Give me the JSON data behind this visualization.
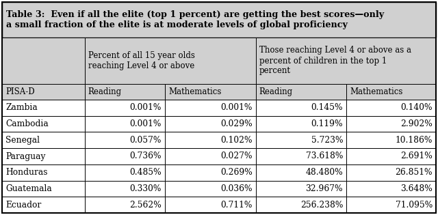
{
  "title_line1": "Table 3:  Even if all the elite (top 1 percent) are getting the best scores—only",
  "title_line2": "a small fraction of the elite is at moderate levels of global proficiency",
  "col_header_1": "Percent of all 15 year olds\nreaching Level 4 or above",
  "col_header_2": "Those reaching Level 4 or above as a\npercent of children in the top 1\npercent",
  "sub_headers": [
    "PISA-D",
    "Reading",
    "Mathematics",
    "Reading",
    "Mathematics"
  ],
  "countries": [
    "Zambia",
    "Cambodia",
    "Senegal",
    "Paraguay",
    "Honduras",
    "Guatemala",
    "Ecuador"
  ],
  "col1_reading": [
    "0.001%",
    "0.001%",
    "0.057%",
    "0.736%",
    "0.485%",
    "0.330%",
    "2.562%"
  ],
  "col1_math": [
    "0.001%",
    "0.029%",
    "0.102%",
    "0.027%",
    "0.269%",
    "0.036%",
    "0.711%"
  ],
  "col2_reading": [
    "0.145%",
    "0.119%",
    "5.723%",
    "73.618%",
    "48.480%",
    "32.967%",
    "256.238%"
  ],
  "col2_math": [
    "0.140%",
    "2.902%",
    "10.186%",
    "2.691%",
    "26.851%",
    "3.648%",
    "71.095%"
  ],
  "header_bg": "#d0d0d0",
  "title_bg": "#d0d0d0",
  "row_bg": "#ffffff",
  "border_color": "#000000",
  "title_fontsize": 9.2,
  "header_fontsize": 8.5,
  "cell_fontsize": 8.8
}
